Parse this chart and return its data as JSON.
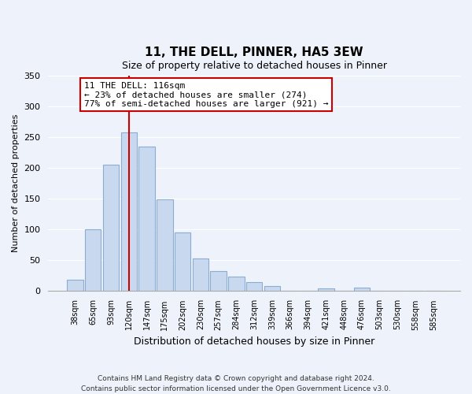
{
  "title": "11, THE DELL, PINNER, HA5 3EW",
  "subtitle": "Size of property relative to detached houses in Pinner",
  "xlabel": "Distribution of detached houses by size in Pinner",
  "ylabel": "Number of detached properties",
  "bar_labels": [
    "38sqm",
    "65sqm",
    "93sqm",
    "120sqm",
    "147sqm",
    "175sqm",
    "202sqm",
    "230sqm",
    "257sqm",
    "284sqm",
    "312sqm",
    "339sqm",
    "366sqm",
    "394sqm",
    "421sqm",
    "448sqm",
    "476sqm",
    "503sqm",
    "530sqm",
    "558sqm",
    "585sqm"
  ],
  "bar_values": [
    18,
    100,
    205,
    258,
    235,
    149,
    95,
    53,
    33,
    24,
    14,
    8,
    0,
    0,
    5,
    0,
    6,
    0,
    0,
    0,
    1
  ],
  "bar_color": "#c8d8ee",
  "bar_edge_color": "#8badd4",
  "vline_x": 3.0,
  "annotation_title": "11 THE DELL: 116sqm",
  "annotation_line1": "← 23% of detached houses are smaller (274)",
  "annotation_line2": "77% of semi-detached houses are larger (921) →",
  "vline_color": "#cc0000",
  "ylim": [
    0,
    350
  ],
  "yticks": [
    0,
    50,
    100,
    150,
    200,
    250,
    300,
    350
  ],
  "footnote1": "Contains HM Land Registry data © Crown copyright and database right 2024.",
  "footnote2": "Contains public sector information licensed under the Open Government Licence v3.0.",
  "background_color": "#eef2fa",
  "plot_bg_color": "#eef2fa",
  "grid_color": "#ffffff"
}
